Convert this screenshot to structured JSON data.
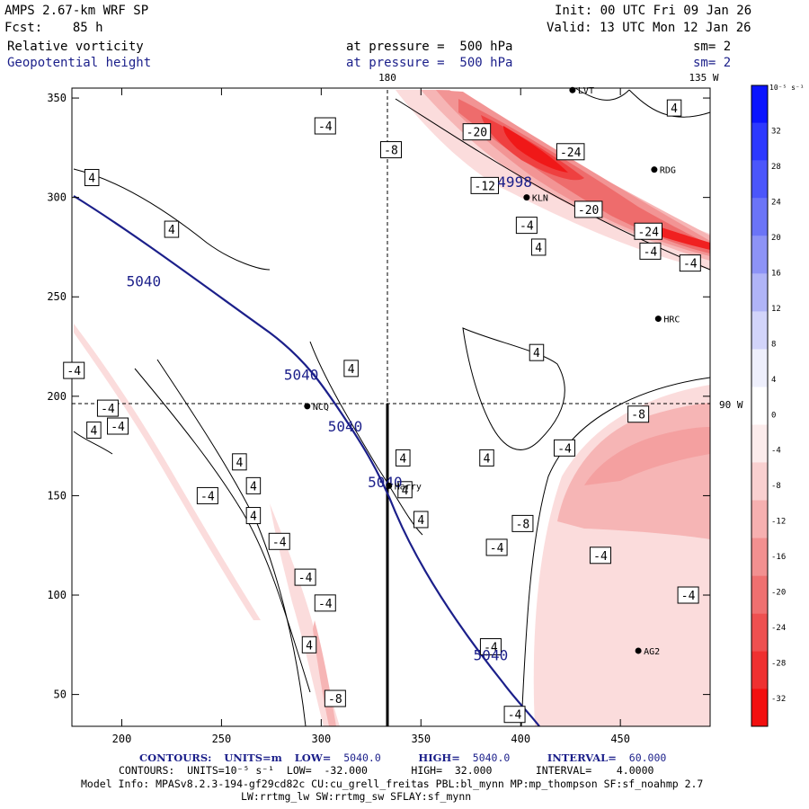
{
  "header": {
    "model": "AMPS 2.67-km WRF SP",
    "forecast": "Fcst:    85 h",
    "init": "Init: 00 UTC Fri 09 Jan 26",
    "valid": "Valid: 13 UTC Mon 12 Jan 26",
    "field1": "Relative vorticity",
    "field2": "Geopotential height",
    "level1": "at pressure =  500 hPa",
    "level2": "at pressure =  500 hPa",
    "smooth1": "sm= 2",
    "smooth2": "sm= 2",
    "lon_top_180": "180",
    "lon_top_135w": "135 W",
    "lon_right_90w": "90 W"
  },
  "axes": {
    "x_ticks": [
      "200",
      "250",
      "300",
      "350",
      "400",
      "450"
    ],
    "y_ticks": [
      "350",
      "300",
      "250",
      "200",
      "150",
      "100",
      "50"
    ],
    "x_range": [
      175,
      495
    ],
    "y_range": [
      34,
      355
    ]
  },
  "colorbar": {
    "unit_label": "10⁻⁵ s⁻¹",
    "labels": [
      "32",
      "28",
      "24",
      "20",
      "16",
      "12",
      "8",
      "4",
      "0",
      "-4",
      "-8",
      "-12",
      "-16",
      "-20",
      "-24",
      "-28",
      "-32"
    ],
    "colors": [
      "#0a14ff",
      "#2c38ff",
      "#4b56fb",
      "#6b74f7",
      "#8d93f6",
      "#b0b4f7",
      "#d2d4fa",
      "#eeeffc",
      "#ffffff",
      "#fcecec",
      "#f9d0d0",
      "#f6b0b0",
      "#f29090",
      "#ef7070",
      "#ee5050",
      "#ef3030",
      "#f20f0f"
    ]
  },
  "stations": [
    {
      "name": "LVT",
      "x": 426,
      "y": 354
    },
    {
      "name": "RDG",
      "x": 467,
      "y": 314
    },
    {
      "name": "KLN",
      "x": 403,
      "y": 300
    },
    {
      "name": "HRC",
      "x": 469,
      "y": 239
    },
    {
      "name": "NCQ",
      "x": 293,
      "y": 195
    },
    {
      "name": "Harry",
      "x": 334,
      "y": 155
    },
    {
      "name": "AG2",
      "x": 459,
      "y": 72
    }
  ],
  "height_labels": [
    {
      "text": "5040",
      "x": 211,
      "y": 258
    },
    {
      "text": "5040",
      "x": 290,
      "y": 211
    },
    {
      "text": "5040",
      "x": 312,
      "y": 185
    },
    {
      "text": "5040",
      "x": 332,
      "y": 157
    },
    {
      "text": "5040",
      "x": 385,
      "y": 70
    },
    {
      "text": "4998",
      "x": 397,
      "y": 308
    }
  ],
  "vort_labels": [
    {
      "text": "4",
      "x": 185,
      "y": 310
    },
    {
      "text": "4",
      "x": 225,
      "y": 284
    },
    {
      "text": "-4",
      "x": 302,
      "y": 336
    },
    {
      "text": "-8",
      "x": 335,
      "y": 324
    },
    {
      "text": "-20",
      "x": 378,
      "y": 333
    },
    {
      "text": "-12",
      "x": 382,
      "y": 306
    },
    {
      "text": "-24",
      "x": 425,
      "y": 323
    },
    {
      "text": "-20",
      "x": 434,
      "y": 294
    },
    {
      "text": "-4",
      "x": 403,
      "y": 286
    },
    {
      "text": "4",
      "x": 409,
      "y": 275
    },
    {
      "text": "-24",
      "x": 464,
      "y": 283
    },
    {
      "text": "-4",
      "x": 465,
      "y": 273
    },
    {
      "text": "-4",
      "x": 485,
      "y": 267
    },
    {
      "text": "4",
      "x": 477,
      "y": 345
    },
    {
      "text": "4",
      "x": 315,
      "y": 214
    },
    {
      "text": "4",
      "x": 408,
      "y": 222
    },
    {
      "text": "-4",
      "x": 176,
      "y": 213
    },
    {
      "text": "-4",
      "x": 193,
      "y": 194
    },
    {
      "text": "4",
      "x": 186,
      "y": 183
    },
    {
      "text": "-4",
      "x": 198,
      "y": 185
    },
    {
      "text": "4",
      "x": 259,
      "y": 167
    },
    {
      "text": "4",
      "x": 266,
      "y": 155
    },
    {
      "text": "4",
      "x": 266,
      "y": 140
    },
    {
      "text": "-4",
      "x": 243,
      "y": 150
    },
    {
      "text": "-4",
      "x": 279,
      "y": 127
    },
    {
      "text": "-4",
      "x": 292,
      "y": 109
    },
    {
      "text": "-4",
      "x": 302,
      "y": 96
    },
    {
      "text": "4",
      "x": 294,
      "y": 75
    },
    {
      "text": "-8",
      "x": 307,
      "y": 48
    },
    {
      "text": "4",
      "x": 341,
      "y": 169
    },
    {
      "text": "4",
      "x": 342,
      "y": 153
    },
    {
      "text": "4",
      "x": 350,
      "y": 138
    },
    {
      "text": "4",
      "x": 383,
      "y": 169
    },
    {
      "text": "-4",
      "x": 422,
      "y": 174
    },
    {
      "text": "-8",
      "x": 459,
      "y": 191
    },
    {
      "text": "-8",
      "x": 401,
      "y": 136
    },
    {
      "text": "-4",
      "x": 388,
      "y": 124
    },
    {
      "text": "-4",
      "x": 440,
      "y": 120
    },
    {
      "text": "-4",
      "x": 484,
      "y": 100
    },
    {
      "text": "-4",
      "x": 385,
      "y": 74
    },
    {
      "text": "-4",
      "x": 397,
      "y": 40
    }
  ],
  "footer": {
    "line1_contours": "CONTOURS:",
    "line1_units": "UNITS=m",
    "line1_low": "LOW=",
    "line1_low_val": "5040.0",
    "line1_high": "HIGH=",
    "line1_high_val": "5040.0",
    "line1_interval": "INTERVAL=",
    "line1_interval_val": "60.000",
    "line2": "CONTOURS:  UNITS=10⁻⁵ s⁻¹  LOW=  -32.000       HIGH=  32.000       INTERVAL=    4.0000",
    "line3": "Model Info: MPASv8.2.3-194-gf29cd82c CU:cu_grell_freitas PBL:bl_mynn MP:mp_thompson SF:sf_noahmp 2.7",
    "line4": "LW:rrtmg_lw SW:rrtmg_sw SFLAY:sf_mynn"
  }
}
